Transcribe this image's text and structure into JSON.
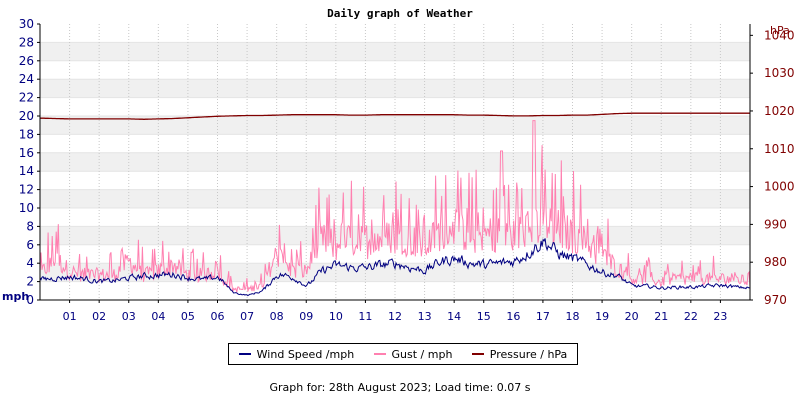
{
  "chart_data": {
    "type": "line",
    "title": "Daily graph of Weather",
    "ylabel_left": "mph",
    "ylabel_right": "hPa",
    "ylim_left": [
      0,
      30
    ],
    "ylim_right": [
      970,
      1043
    ],
    "yticks_left": [
      "0",
      "2",
      "4",
      "6",
      "8",
      "10",
      "12",
      "14",
      "16",
      "18",
      "20",
      "22",
      "24",
      "26",
      "28",
      "30"
    ],
    "yticks_right": [
      "970",
      "980",
      "990",
      "1000",
      "1010",
      "1020",
      "1030",
      "1040"
    ],
    "xticks": [
      "01",
      "02",
      "03",
      "04",
      "05",
      "06",
      "07",
      "08",
      "09",
      "10",
      "11",
      "12",
      "13",
      "14",
      "15",
      "16",
      "17",
      "18",
      "19",
      "20",
      "21",
      "22",
      "23"
    ],
    "xlim_hours": [
      0,
      24
    ],
    "grid": true,
    "legend_position": "bottom",
    "hours": [
      0,
      0.5,
      1,
      1.5,
      2,
      2.5,
      3,
      3.5,
      4,
      4.5,
      5,
      5.5,
      6,
      6.5,
      7,
      7.5,
      8,
      8.5,
      9,
      9.5,
      10,
      10.5,
      11,
      11.5,
      12,
      12.5,
      13,
      13.5,
      14,
      14.5,
      15,
      15.5,
      16,
      16.5,
      17,
      17.5,
      18,
      18.5,
      19,
      19.5,
      20,
      20.5,
      21,
      21.5,
      22,
      22.5,
      23,
      23.5,
      24
    ],
    "series": [
      {
        "name": "Wind Speed /mph",
        "color": "#000080",
        "axis": "left",
        "values": [
          2.2,
          2.4,
          2.5,
          2.3,
          2.0,
          2.1,
          2.4,
          2.6,
          2.7,
          2.8,
          2.4,
          2.2,
          2.5,
          0.8,
          0.5,
          1.0,
          2.8,
          2.5,
          1.5,
          3.2,
          3.8,
          3.5,
          3.5,
          3.8,
          4.0,
          3.5,
          3.2,
          4.2,
          4.5,
          4.0,
          3.8,
          4.0,
          4.2,
          5.2,
          6.5,
          5.0,
          4.5,
          3.8,
          3.0,
          2.6,
          1.5,
          1.5,
          1.3,
          1.4,
          1.4,
          1.5,
          1.6,
          1.4,
          1.3
        ]
      },
      {
        "name": "Gust / mph",
        "color": "#ff80b0",
        "axis": "left",
        "values": [
          3.5,
          6.0,
          4.0,
          3.5,
          3.5,
          3.5,
          5.5,
          3.5,
          4.0,
          5.0,
          3.5,
          3.5,
          4.0,
          1.5,
          1.5,
          2.0,
          6.5,
          4.0,
          4.0,
          8.5,
          7.5,
          8.5,
          8.0,
          8.5,
          9.0,
          8.5,
          7.5,
          9.5,
          10.5,
          9.0,
          9.0,
          9.5,
          9.0,
          10.0,
          11.0,
          10.0,
          9.0,
          8.0,
          6.5,
          4.5,
          3.0,
          3.0,
          2.5,
          3.0,
          3.0,
          3.0,
          3.0,
          3.0,
          2.5
        ]
      },
      {
        "name": "Pressure / hPa",
        "color": "#800000",
        "axis": "right",
        "values": [
          1018.1,
          1018.0,
          1017.9,
          1017.9,
          1017.9,
          1017.9,
          1017.9,
          1017.8,
          1017.9,
          1018.0,
          1018.2,
          1018.4,
          1018.6,
          1018.7,
          1018.8,
          1018.8,
          1018.9,
          1019.0,
          1019.0,
          1019.0,
          1019.0,
          1018.9,
          1018.9,
          1019.0,
          1019.0,
          1019.0,
          1019.0,
          1019.0,
          1019.0,
          1018.9,
          1018.9,
          1018.8,
          1018.7,
          1018.7,
          1018.8,
          1018.8,
          1018.9,
          1018.9,
          1019.1,
          1019.3,
          1019.4,
          1019.4,
          1019.4,
          1019.4,
          1019.4,
          1019.4,
          1019.4,
          1019.4,
          1019.4
        ]
      }
    ]
  },
  "footer_text": "Graph for: 28th August 2023; Load time: 0.07 s"
}
